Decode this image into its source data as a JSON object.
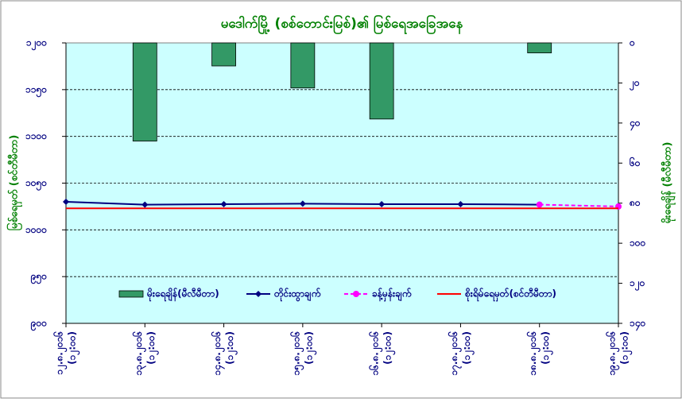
{
  "chart_data": {
    "type": "bar-line",
    "title": "မဒေါက်မြို့ (စစ်တောင်းမြစ်)၏ မြစ်ရေအခြေအနေ",
    "ylabel": "မြစ်ရေမှတ် (စင်တီမီတာ)",
    "y2label": "မိုးရေချိန် (မီလီမီတာ)",
    "categories": [
      [
        "၁၂.၈.၂၀၁၆",
        "(၁၂:၀၀)"
      ],
      [
        "၁၃.၈.၂၀၁၆",
        "(၁၂:၀၀)"
      ],
      [
        "၁၄.၈.၂၀၁၆",
        "(၁၂:၀၀)"
      ],
      [
        "၁၅.၈.၂၀၁၆",
        "(၁၂:၀၀)"
      ],
      [
        "၁၆.၈.၂၀၁၆",
        "(၁၂:၀၀)"
      ],
      [
        "၁၇.၈.၂၀၁၆",
        "(၁၂:၀၀)"
      ],
      [
        "၁၈.၈.၂၀၁၆",
        "(၁၂:၀၀)"
      ],
      [
        "၁၉.၈.၂၀၁၆",
        "(၁၂:၀၀)"
      ]
    ],
    "series": [
      {
        "name": "မိုးရေချိန်(မီလီမီတာ)",
        "kind": "bar",
        "axis": "y2",
        "color": "#339966",
        "values": [
          0,
          49,
          11.5,
          22.5,
          38,
          0,
          5,
          0
        ]
      },
      {
        "name": "တိုင်းထွာချက်",
        "kind": "line",
        "color": "#000080",
        "marker": "diamond",
        "values": [
          1030,
          1027,
          1027.5,
          1028,
          1027.5,
          1027.5,
          1027,
          null
        ]
      },
      {
        "name": "ခန့်မှန်းချက်",
        "kind": "line",
        "color": "#ff00ff",
        "dash": true,
        "marker": "circle",
        "values": [
          null,
          null,
          null,
          null,
          null,
          null,
          1027,
          1025
        ]
      },
      {
        "name": "စိုးရိမ်ရေမှတ်(စင်တီမီတာ)",
        "kind": "line",
        "color": "#ff0000",
        "values": [
          1023,
          1023,
          1023,
          1023,
          1023,
          1023,
          1023,
          1023
        ]
      }
    ],
    "ylim": [
      900,
      1200
    ],
    "yticks": [
      {
        "value": 900,
        "label": "၉၀၀"
      },
      {
        "value": 950,
        "label": "၉၅၀"
      },
      {
        "value": 1000,
        "label": "၁၀၀၀"
      },
      {
        "value": 1050,
        "label": "၁၀၅၀"
      },
      {
        "value": 1100,
        "label": "၁၁၀၀"
      },
      {
        "value": 1150,
        "label": "၁၁၅၀"
      },
      {
        "value": 1200,
        "label": "၁၂၀၀"
      }
    ],
    "y2lim": [
      0,
      140
    ],
    "y2_inverted": true,
    "y2ticks": [
      {
        "value": 0,
        "label": "၀"
      },
      {
        "value": 20,
        "label": "၂၀"
      },
      {
        "value": 40,
        "label": "၄၀"
      },
      {
        "value": 60,
        "label": "၆၀"
      },
      {
        "value": 80,
        "label": "၈၀"
      },
      {
        "value": 100,
        "label": "၁၀၀"
      },
      {
        "value": 120,
        "label": "၁၂၀"
      },
      {
        "value": 140,
        "label": "၁၄၀"
      }
    ],
    "grid": true
  }
}
